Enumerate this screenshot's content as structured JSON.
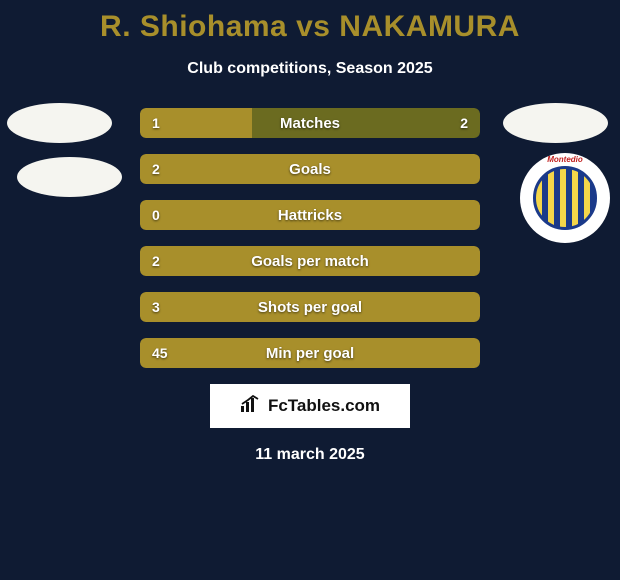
{
  "background_color": "#0f1b33",
  "title": "R. Shiohama vs NAKAMURA",
  "title_color": "#a88f2b",
  "subtitle": "Club competitions, Season 2025",
  "subtitle_color": "#ffffff",
  "avatar_placeholder_color": "#f5f5f0",
  "club_badge_text": "Montedio",
  "bars": {
    "left_color": "#a88f2b",
    "right_color": "#6b6b20",
    "label_color": "#ffffff",
    "value_color": "#ffffff",
    "rows": [
      {
        "label": "Matches",
        "left_value": "1",
        "right_value": "2",
        "left_pct": 33,
        "right_pct": 67
      },
      {
        "label": "Goals",
        "left_value": "2",
        "right_value": "",
        "left_pct": 100,
        "right_pct": 0
      },
      {
        "label": "Hattricks",
        "left_value": "0",
        "right_value": "",
        "left_pct": 100,
        "right_pct": 0
      },
      {
        "label": "Goals per match",
        "left_value": "2",
        "right_value": "",
        "left_pct": 100,
        "right_pct": 0
      },
      {
        "label": "Shots per goal",
        "left_value": "3",
        "right_value": "",
        "left_pct": 100,
        "right_pct": 0
      },
      {
        "label": "Min per goal",
        "left_value": "45",
        "right_value": "",
        "left_pct": 100,
        "right_pct": 0
      }
    ]
  },
  "footer": {
    "brand": "FcTables.com",
    "bg": "#ffffff",
    "text_color": "#111111"
  },
  "date": "11 march 2025"
}
